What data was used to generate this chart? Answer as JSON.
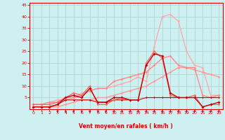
{
  "xlabel": "Vent moyen/en rafales ( km/h )",
  "bg_color": "#cff0f0",
  "grid_color": "#aad8d8",
  "axis_color": "#dd0000",
  "xlim": [
    -0.5,
    23.5
  ],
  "ylim": [
    0,
    46
  ],
  "yticks": [
    5,
    10,
    15,
    20,
    25,
    30,
    35,
    40,
    45
  ],
  "xticks": [
    0,
    1,
    2,
    3,
    4,
    5,
    6,
    7,
    8,
    9,
    10,
    11,
    12,
    13,
    14,
    15,
    16,
    17,
    18,
    19,
    20,
    21,
    22,
    23
  ],
  "series": [
    {
      "x": [
        0,
        1,
        2,
        3,
        4,
        5,
        6,
        7,
        8,
        9,
        10,
        11,
        12,
        13,
        14,
        15,
        16,
        17,
        18,
        19,
        20,
        21,
        22,
        23
      ],
      "y": [
        1,
        1,
        1,
        2,
        5,
        6,
        5,
        9,
        3,
        3,
        5,
        5,
        4,
        4,
        19,
        24,
        23,
        7,
        5,
        5,
        5,
        1,
        2,
        3
      ],
      "color": "#cc0000",
      "lw": 1.0,
      "marker": "D",
      "ms": 2.0,
      "zorder": 6
    },
    {
      "x": [
        0,
        1,
        2,
        3,
        4,
        5,
        6,
        7,
        8,
        9,
        10,
        11,
        12,
        13,
        14,
        15,
        16,
        17,
        18,
        19,
        20,
        21,
        22,
        23
      ],
      "y": [
        1,
        1,
        1,
        2,
        4,
        4,
        4,
        4,
        3,
        3,
        4,
        4,
        4,
        4,
        5,
        5,
        5,
        5,
        5,
        5,
        5,
        5,
        5,
        5
      ],
      "color": "#cc0000",
      "lw": 0.8,
      "marker": "D",
      "ms": 1.5,
      "zorder": 4
    },
    {
      "x": [
        0,
        1,
        2,
        3,
        4,
        5,
        6,
        7,
        8,
        9,
        10,
        11,
        12,
        13,
        14,
        15,
        16,
        17,
        18,
        19,
        20,
        21,
        22,
        23
      ],
      "y": [
        1,
        1,
        1,
        1,
        2,
        3,
        4,
        4,
        5,
        5,
        6,
        7,
        8,
        9,
        10,
        12,
        14,
        16,
        18,
        18,
        17,
        16,
        15,
        14
      ],
      "color": "#ff9999",
      "lw": 1.0,
      "marker": "D",
      "ms": 1.8,
      "zorder": 3
    },
    {
      "x": [
        0,
        1,
        2,
        3,
        4,
        5,
        6,
        7,
        8,
        9,
        10,
        11,
        12,
        13,
        14,
        15,
        16,
        17,
        18,
        19,
        20,
        21,
        22,
        23
      ],
      "y": [
        2,
        2,
        3,
        3,
        5,
        5,
        6,
        8,
        9,
        9,
        12,
        13,
        14,
        15,
        16,
        19,
        22,
        23,
        19,
        18,
        18,
        6,
        5,
        6
      ],
      "color": "#ff8888",
      "lw": 1.0,
      "marker": "D",
      "ms": 1.8,
      "zorder": 3
    },
    {
      "x": [
        0,
        1,
        2,
        3,
        4,
        5,
        6,
        7,
        8,
        9,
        10,
        11,
        12,
        13,
        14,
        15,
        16,
        17,
        18,
        19,
        20,
        21,
        22,
        23
      ],
      "y": [
        2,
        2,
        3,
        4,
        4,
        5,
        7,
        8,
        9,
        9,
        10,
        11,
        12,
        14,
        12,
        27,
        40,
        41,
        38,
        25,
        19,
        18,
        6,
        6
      ],
      "color": "#ffaaaa",
      "lw": 1.0,
      "marker": "D",
      "ms": 1.8,
      "zorder": 2
    },
    {
      "x": [
        0,
        1,
        2,
        3,
        4,
        5,
        6,
        7,
        8,
        9,
        10,
        11,
        12,
        13,
        14,
        15,
        16,
        17,
        18,
        19,
        20,
        21,
        22,
        23
      ],
      "y": [
        2,
        2,
        2,
        3,
        5,
        7,
        6,
        10,
        2,
        2,
        4,
        5,
        4,
        4,
        20,
        25,
        22,
        6,
        5,
        5,
        6,
        1,
        2,
        2
      ],
      "color": "#ee6666",
      "lw": 0.9,
      "marker": "D",
      "ms": 1.8,
      "zorder": 5
    }
  ],
  "arrows_x": [
    3,
    4,
    5,
    6,
    7,
    8,
    9,
    10,
    11,
    12,
    13,
    14,
    15,
    16,
    17,
    18,
    19,
    20,
    21,
    22,
    23
  ],
  "arrow_color": "#cc0000"
}
